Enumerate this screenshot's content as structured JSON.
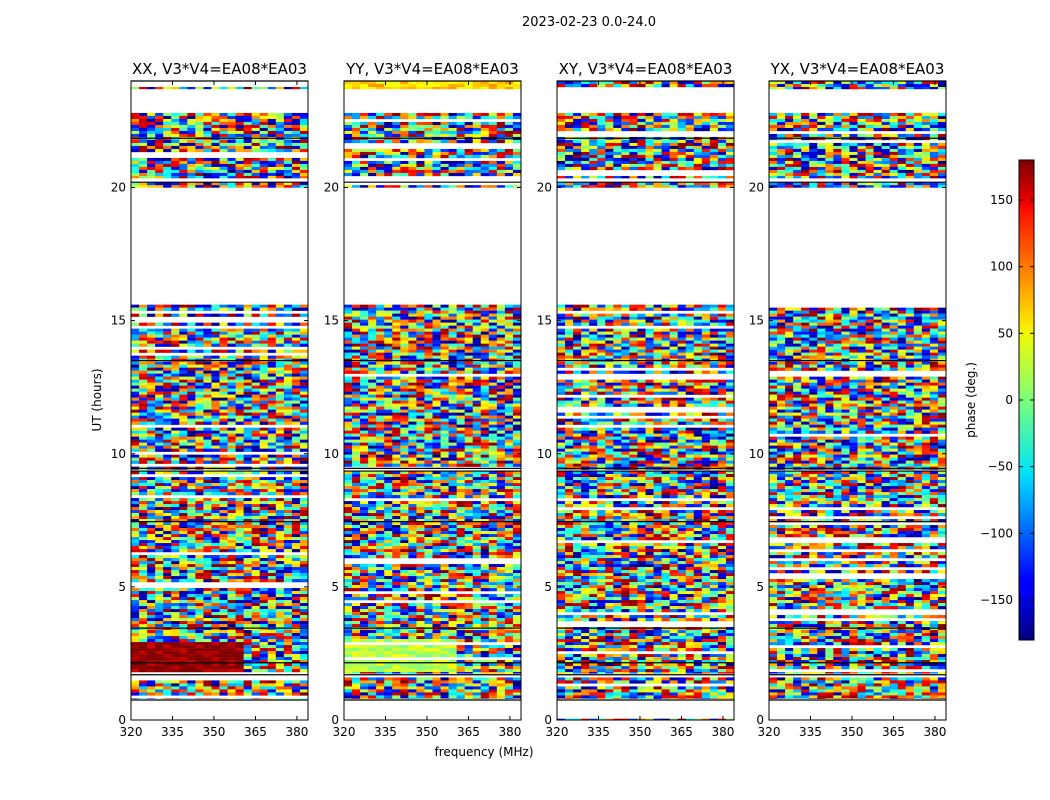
{
  "figure": {
    "suptitle": "2023-02-23 0.0-24.0"
  },
  "chart_data": {
    "type": "heatmap",
    "xlabel": "frequency (MHz)",
    "ylabel": "UT (hours)",
    "xlim": [
      320,
      384
    ],
    "ylim": [
      0,
      24
    ],
    "xticks": [
      "320",
      "335",
      "350",
      "365",
      "380"
    ],
    "yticks": [
      "0",
      "5",
      "10",
      "15",
      "20"
    ],
    "panels": [
      {
        "title": "XX, V3*V4=EA08*EA03",
        "pol": "XX"
      },
      {
        "title": "YY, V3*V4=EA08*EA03",
        "pol": "YY"
      },
      {
        "title": "XY, V3*V4=EA08*EA03",
        "pol": "XY"
      },
      {
        "title": "YX, V3*V4=EA08*EA03",
        "pol": "YX"
      }
    ],
    "colorbar": {
      "label": "phase (deg.)",
      "range": [
        -180,
        180
      ],
      "ticks": [
        "150",
        "100",
        "50",
        "0",
        "−50",
        "−100",
        "−150"
      ],
      "colormap": "jet"
    },
    "data_coverage_hours": [
      [
        0.0,
        0.05
      ],
      [
        0.8,
        1.6
      ],
      [
        1.75,
        9.35
      ],
      [
        9.4,
        15.6
      ],
      [
        20.0,
        20.2
      ],
      [
        20.35,
        22.8
      ],
      [
        23.7,
        24.0
      ]
    ],
    "features": [
      {
        "panel": "XX",
        "ut_range": [
          1.8,
          2.9
        ],
        "freq_range": [
          320,
          361
        ],
        "phase_deg": 175,
        "note": "coherent phase block"
      },
      {
        "panel": "YY",
        "ut_range": [
          1.8,
          3.0
        ],
        "freq_range": [
          320,
          361
        ],
        "phase_deg": 20,
        "note": "coherent phase block"
      },
      {
        "panel": "YY",
        "ut_range": [
          23.7,
          24.0
        ],
        "freq_range": [
          320,
          384
        ],
        "phase_deg": 60,
        "note": "coherent phase band"
      }
    ]
  }
}
